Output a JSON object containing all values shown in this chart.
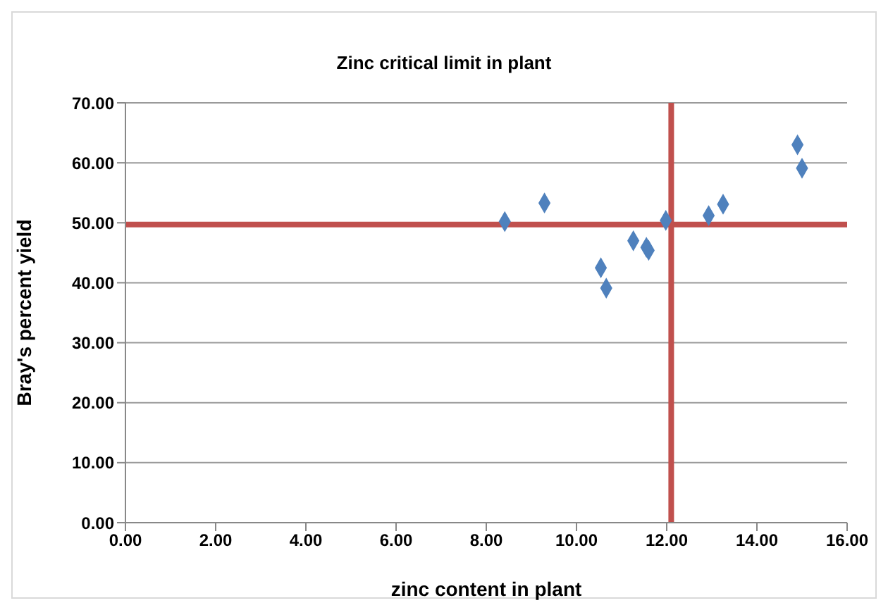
{
  "chart_data": {
    "type": "scatter",
    "title": "Zinc critical limit in plant",
    "xlabel": "zinc content in plant",
    "ylabel": "Bray's percent yield",
    "x": [
      8.41,
      9.29,
      10.54,
      10.66,
      11.26,
      11.55,
      11.6,
      11.98,
      12.93,
      13.25,
      14.9,
      15.0
    ],
    "series": [
      {
        "color": "#4f81bd",
        "values": [
          50.2,
          53.3,
          42.5,
          39.1,
          47.0,
          45.9,
          45.4,
          50.4,
          51.2,
          53.1,
          63.0,
          59.1
        ]
      }
    ],
    "xlim": [
      0,
      16
    ],
    "xticks": [
      {
        "value": 0,
        "label": "0.00"
      },
      {
        "value": 2,
        "label": "2.00"
      },
      {
        "value": 4,
        "label": "4.00"
      },
      {
        "value": 6,
        "label": "6.00"
      },
      {
        "value": 8,
        "label": "8.00"
      },
      {
        "value": 10,
        "label": "10.00"
      },
      {
        "value": 12,
        "label": "12.00"
      },
      {
        "value": 14,
        "label": "14.00"
      },
      {
        "value": 16,
        "label": "16.00"
      }
    ],
    "ylim": [
      0,
      70
    ],
    "yticks": [
      {
        "value": 0,
        "label": "0.00"
      },
      {
        "value": 10,
        "label": "10.00"
      },
      {
        "value": 20,
        "label": "20.00"
      },
      {
        "value": 30,
        "label": "30.00"
      },
      {
        "value": 40,
        "label": "40.00"
      },
      {
        "value": 50,
        "label": "50.00"
      },
      {
        "value": 60,
        "label": "60.00"
      },
      {
        "value": 70,
        "label": "70.00"
      }
    ],
    "grid": "y",
    "marker": "diamond",
    "ref_lines": [
      {
        "axis": "y",
        "value": 49.7,
        "color": "#c0504d"
      },
      {
        "axis": "x",
        "value": 12.1,
        "color": "#c0504d"
      }
    ]
  }
}
